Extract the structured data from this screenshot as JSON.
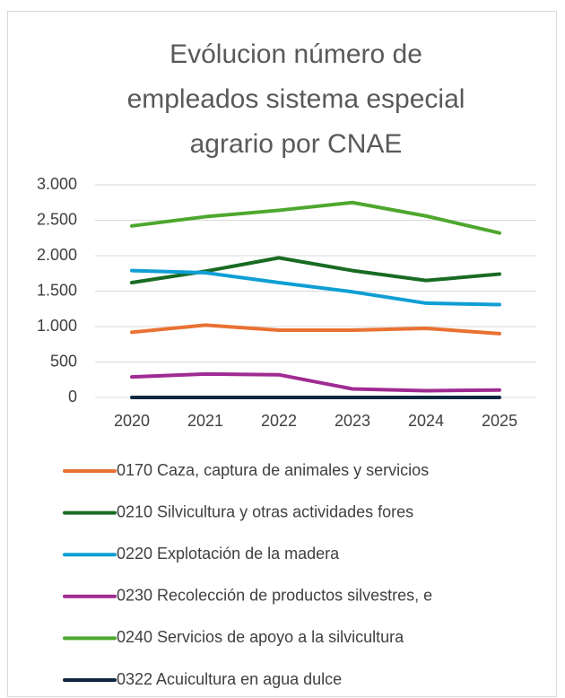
{
  "chart_data": {
    "type": "line",
    "title": [
      "Evólucion número de",
      "empleados sistema especial",
      "agrario por CNAE"
    ],
    "categories": [
      "2020",
      "2021",
      "2022",
      "2023",
      "2024",
      "2025"
    ],
    "series": [
      {
        "name": "0170 Caza, captura de animales y servicios",
        "color": "#E97132",
        "values": [
          920,
          1020,
          950,
          950,
          975,
          900
        ]
      },
      {
        "name": "0210 Silvicultura y otras actividades fores",
        "color": "#196B24",
        "values": [
          1620,
          1780,
          1970,
          1790,
          1650,
          1740
        ]
      },
      {
        "name": "0220 Explotación de la madera",
        "color": "#0F9ED5",
        "values": [
          1790,
          1760,
          1620,
          1490,
          1330,
          1310
        ]
      },
      {
        "name": "0230 Recolección de productos silvestres, e",
        "color": "#A02B93",
        "values": [
          290,
          330,
          320,
          120,
          95,
          105
        ]
      },
      {
        "name": "0240 Servicios de apoyo a la silvicultura",
        "color": "#4EA72E",
        "values": [
          2420,
          2550,
          2640,
          2750,
          2560,
          2320
        ]
      },
      {
        "name": "0322 Acuicultura en agua dulce",
        "color": "#0E2841",
        "values": [
          0,
          0,
          0,
          0,
          0,
          0
        ]
      }
    ],
    "ylim": [
      0,
      3000
    ],
    "yticks": [
      0,
      500,
      {
        "value": 1000,
        "label": "1.000"
      },
      {
        "value": 1500,
        "label": "1.500"
      },
      {
        "value": 2000,
        "label": "2.000"
      },
      {
        "value": 2500,
        "label": "2.500"
      },
      {
        "value": 3000,
        "label": "3.000"
      }
    ],
    "grid": true,
    "legend": "bottom"
  }
}
